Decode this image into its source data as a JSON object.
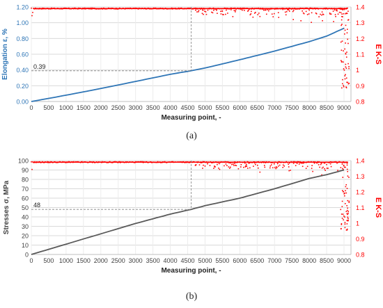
{
  "chart_data": [
    {
      "panel": "(a)",
      "type": "line",
      "xlabel": "Measuring point, -",
      "xlim": [
        0,
        9200
      ],
      "xticks": [
        0,
        500,
        1000,
        1500,
        2000,
        2500,
        3000,
        3500,
        4000,
        4500,
        5000,
        5500,
        6000,
        6500,
        7000,
        7500,
        8000,
        8500,
        9000
      ],
      "y_left": {
        "label": "Elongation ε, %",
        "ylim": [
          0,
          1.2
        ],
        "ticks": [
          "0.00",
          "0.20",
          "0.40",
          "0.60",
          "0.80",
          "1.00",
          "1.20"
        ],
        "color": "#2E75B6"
      },
      "y_right": {
        "label": "E K-S",
        "ylim": [
          0.8,
          1.4
        ],
        "ticks": [
          "0.8",
          "0.9",
          "1",
          "1.1",
          "1.2",
          "1.3",
          "1.4"
        ],
        "color": "#FF0000"
      },
      "grid": true,
      "series": [
        {
          "axis": "left",
          "style": "line",
          "color": "#2E75B6",
          "x": [
            0,
            1000,
            2000,
            3000,
            4000,
            4600,
            5000,
            6000,
            7000,
            8000,
            8500,
            9000
          ],
          "values": [
            0.0,
            0.08,
            0.165,
            0.255,
            0.345,
            0.39,
            0.425,
            0.53,
            0.64,
            0.76,
            0.83,
            0.93
          ]
        },
        {
          "axis": "right",
          "style": "scatter",
          "color": "#FF0000",
          "baseline": 1.39,
          "noise_start": 4700,
          "noise_min": 1.28,
          "tail_start": 8900,
          "tail_min": 0.88
        }
      ],
      "annotation": {
        "x": 4600,
        "y": 0.39,
        "label": "0.39"
      }
    },
    {
      "panel": "(b)",
      "type": "line",
      "xlabel": "Measuring point, -",
      "xlim": [
        0,
        9200
      ],
      "xticks": [
        0,
        500,
        1000,
        1500,
        2000,
        2500,
        3000,
        3500,
        4000,
        4500,
        5000,
        5500,
        6000,
        6500,
        7000,
        7500,
        8000,
        8500,
        9000
      ],
      "y_left": {
        "label": "Stresses σ, MPa",
        "ylim": [
          0,
          100
        ],
        "ticks": [
          "0",
          "10",
          "20",
          "30",
          "40",
          "50",
          "60",
          "70",
          "80",
          "90",
          "100"
        ],
        "color": "#404040"
      },
      "y_right": {
        "label": "E K-S",
        "ylim": [
          0.8,
          1.4
        ],
        "ticks": [
          "0.8",
          "0.9",
          "1",
          "1.1",
          "1.2",
          "1.3",
          "1.4"
        ],
        "color": "#FF0000"
      },
      "grid": true,
      "series": [
        {
          "axis": "left",
          "style": "line",
          "color": "#595959",
          "x": [
            0,
            1000,
            2000,
            3000,
            4000,
            4600,
            5000,
            6000,
            7000,
            8000,
            8500,
            9000
          ],
          "values": [
            0,
            11,
            22,
            33,
            43,
            48,
            52,
            60,
            70,
            81,
            85,
            90
          ]
        },
        {
          "axis": "right",
          "style": "scatter",
          "color": "#FF0000",
          "baseline": 1.39,
          "noise_start": 4700,
          "noise_min": 1.28,
          "tail_start": 8900,
          "tail_min": 0.92
        }
      ],
      "annotation": {
        "x": 4600,
        "y": 48,
        "label": "48"
      }
    }
  ]
}
